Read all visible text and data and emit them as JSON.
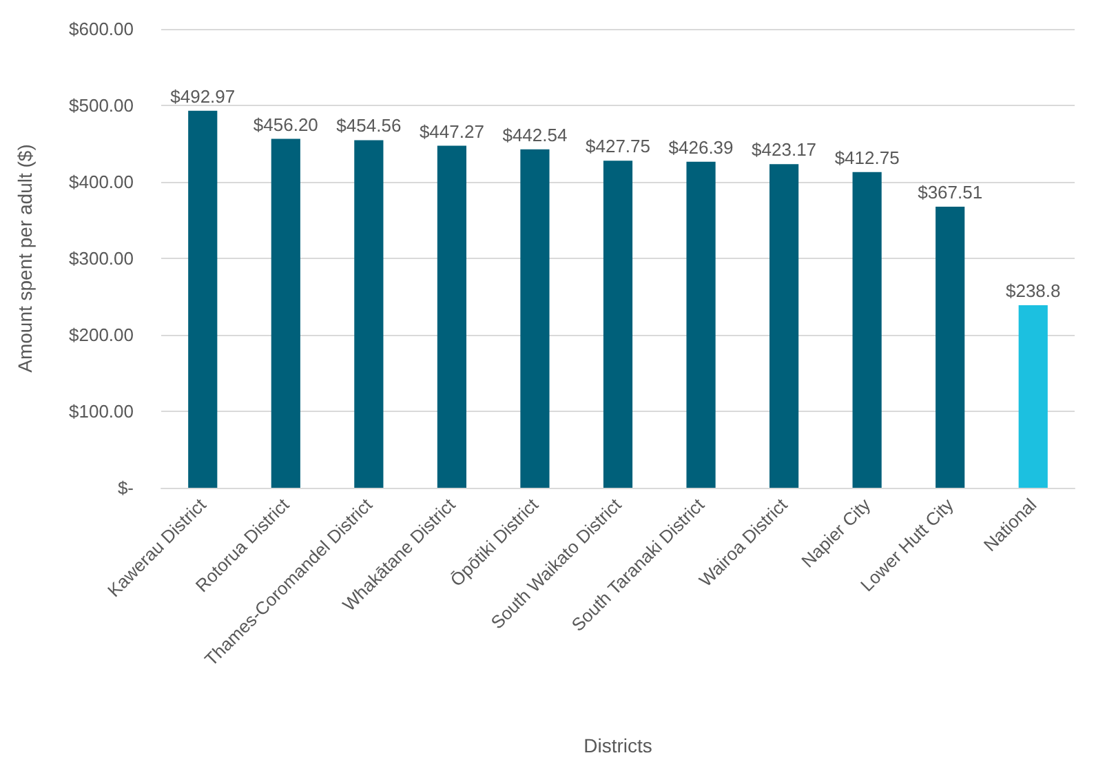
{
  "chart_data": {
    "type": "bar",
    "xlabel": "Districts",
    "ylabel": "Amount spent per adult ($)",
    "categories": [
      "Kawerau District",
      "Rotorua District",
      "Thames-Coromandel District",
      "Whakātane District",
      "Ōpōtiki District",
      "South Waikato District",
      "South Taranaki District",
      "Wairoa District",
      "Napier City",
      "Lower Hutt City",
      "National"
    ],
    "values": [
      492.97,
      456.2,
      454.56,
      447.27,
      442.54,
      427.75,
      426.39,
      423.17,
      412.75,
      367.51,
      238.8
    ],
    "colors": [
      "#00607a",
      "#00607a",
      "#00607a",
      "#00607a",
      "#00607a",
      "#00607a",
      "#00607a",
      "#00607a",
      "#00607a",
      "#00607a",
      "#1cc0e0"
    ],
    "value_labels": [
      "$492.97",
      "$456.20",
      "$454.56",
      "$447.27",
      "$442.54",
      "$427.75",
      "$426.39",
      "$423.17",
      "$412.75",
      "$367.51",
      "$238.8"
    ],
    "ylim": [
      0,
      600
    ],
    "yticks": [
      {
        "value": 0,
        "label": "$-"
      },
      {
        "value": 100,
        "label": "$100.00"
      },
      {
        "value": 200,
        "label": "$200.00"
      },
      {
        "value": 300,
        "label": "$300.00"
      },
      {
        "value": 400,
        "label": "$400.00"
      },
      {
        "value": 500,
        "label": "$500.00"
      },
      {
        "value": 600,
        "label": "$600.00"
      }
    ],
    "grid": "y"
  }
}
